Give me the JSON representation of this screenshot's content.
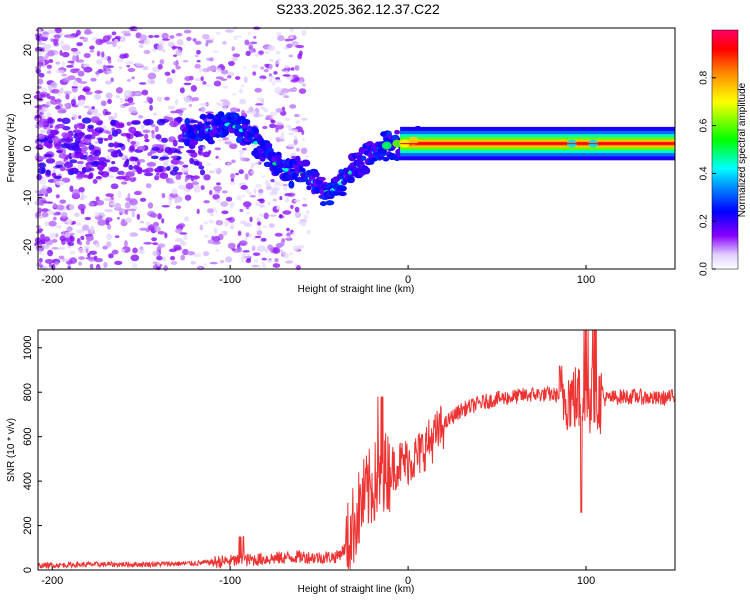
{
  "figure_title": "S233.2025.362.12.37.C22",
  "chart_data": [
    {
      "type": "heatmap",
      "title": "S233.2025.362.12.37.C22",
      "xlabel": "Height of straight line (km)",
      "ylabel": "Frequency (Hz)",
      "xlim": [
        -208,
        150
      ],
      "ylim": [
        -24.5,
        24.5
      ],
      "xticks": [
        -200,
        -100,
        0,
        100
      ],
      "yticks": [
        -20,
        -10,
        0,
        10,
        20
      ],
      "colorbar": {
        "label": "Normalized spectral amplitude",
        "range": [
          0,
          1
        ],
        "ticks": [
          "0.0",
          "0.2",
          "0.4",
          "0.6",
          "0.8"
        ],
        "colormap": [
          "#ffffff",
          "#ddccff",
          "#8800ff",
          "#0000ff",
          "#00ffff",
          "#00ff00",
          "#ffff00",
          "#ff8800",
          "#ff0000",
          "#ff0066"
        ]
      },
      "ridge": {
        "x": [
          -120,
          -110,
          -100,
          -95,
          -90,
          -85,
          -80,
          -75,
          -70,
          -65,
          -60,
          -55,
          -50,
          -45,
          -40,
          -35,
          -30,
          -25,
          -20,
          -15,
          -10,
          -5,
          0,
          5,
          150
        ],
        "frequency": [
          3,
          4,
          5,
          4,
          3,
          1,
          -1,
          -3,
          -4,
          -5,
          -5,
          -6,
          -8,
          -9,
          -8,
          -6,
          -4,
          -3,
          -1,
          0,
          1,
          1,
          1,
          2,
          1
        ]
      },
      "strong_band": {
        "x_start": 0,
        "x_end": 150,
        "frequency": 1
      }
    },
    {
      "type": "line",
      "title": "",
      "xlabel": "Height of straight line (km)",
      "ylabel": "SNR (10 * v/v)",
      "xlim": [
        -208,
        150
      ],
      "ylim": [
        0,
        1080
      ],
      "xticks": [
        -200,
        -100,
        0,
        100
      ],
      "yticks": [
        0,
        200,
        400,
        600,
        800,
        1000
      ],
      "color": "#ee3333",
      "series": [
        {
          "name": "SNR",
          "x": [
            -208,
            -180,
            -150,
            -120,
            -100,
            -80,
            -60,
            -50,
            -40,
            -35,
            -30,
            -25,
            -20,
            -15,
            -10,
            -5,
            0,
            5,
            10,
            15,
            20,
            25,
            30,
            40,
            50,
            60,
            70,
            80,
            90,
            100,
            110,
            120,
            130,
            140,
            150
          ],
          "y": [
            20,
            25,
            25,
            30,
            40,
            50,
            60,
            55,
            60,
            100,
            220,
            320,
            380,
            430,
            450,
            480,
            490,
            510,
            560,
            600,
            650,
            690,
            720,
            750,
            770,
            780,
            790,
            790,
            780,
            760,
            770,
            780,
            780,
            770,
            780
          ]
        }
      ]
    }
  ]
}
